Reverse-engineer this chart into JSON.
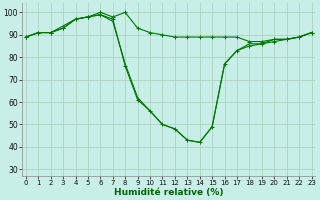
{
  "xlabel": "Humidité relative (%)",
  "background_color": "#c8eee8",
  "line_color": "#007700",
  "grid_color": "#aaccbb",
  "series1_x": [
    0,
    1,
    2,
    3,
    4,
    5,
    6,
    7,
    8,
    9,
    10,
    11,
    12,
    13,
    14,
    15,
    16,
    17,
    18,
    19,
    20,
    21,
    22,
    23
  ],
  "series1_y": [
    89,
    91,
    91,
    93,
    97,
    98,
    100,
    98,
    100,
    93,
    91,
    90,
    89,
    89,
    89,
    89,
    89,
    89,
    87,
    87,
    88,
    88,
    89,
    91
  ],
  "series2_x": [
    0,
    1,
    2,
    3,
    4,
    5,
    6,
    7,
    8,
    9,
    10,
    11,
    12,
    13,
    14,
    15,
    16,
    17,
    18,
    19,
    20,
    21,
    22,
    23
  ],
  "series2_y": [
    89,
    91,
    91,
    93,
    97,
    98,
    99,
    97,
    76,
    61,
    56,
    50,
    48,
    43,
    42,
    49,
    77,
    83,
    85,
    86,
    87,
    88,
    89,
    91
  ],
  "series3_x": [
    0,
    1,
    2,
    3,
    4,
    5,
    6,
    7,
    8,
    9,
    10,
    11,
    12,
    13,
    14,
    15,
    16,
    17,
    18,
    19,
    20,
    21,
    22,
    23
  ],
  "series3_y": [
    89,
    91,
    91,
    94,
    97,
    98,
    99,
    96,
    77,
    62,
    56,
    50,
    48,
    43,
    42,
    49,
    77,
    83,
    86,
    86,
    88,
    88,
    89,
    91
  ],
  "ylim": [
    27,
    104
  ],
  "xlim": [
    -0.3,
    23.3
  ],
  "yticks": [
    30,
    40,
    50,
    60,
    70,
    80,
    90,
    100
  ],
  "xticks": [
    0,
    1,
    2,
    3,
    4,
    5,
    6,
    7,
    8,
    9,
    10,
    11,
    12,
    13,
    14,
    15,
    16,
    17,
    18,
    19,
    20,
    21,
    22,
    23
  ],
  "xlabel_color": "#006600",
  "xlabel_fontsize": 6.5,
  "tick_fontsize": 5.0,
  "linewidth": 0.8,
  "markersize": 2.5
}
